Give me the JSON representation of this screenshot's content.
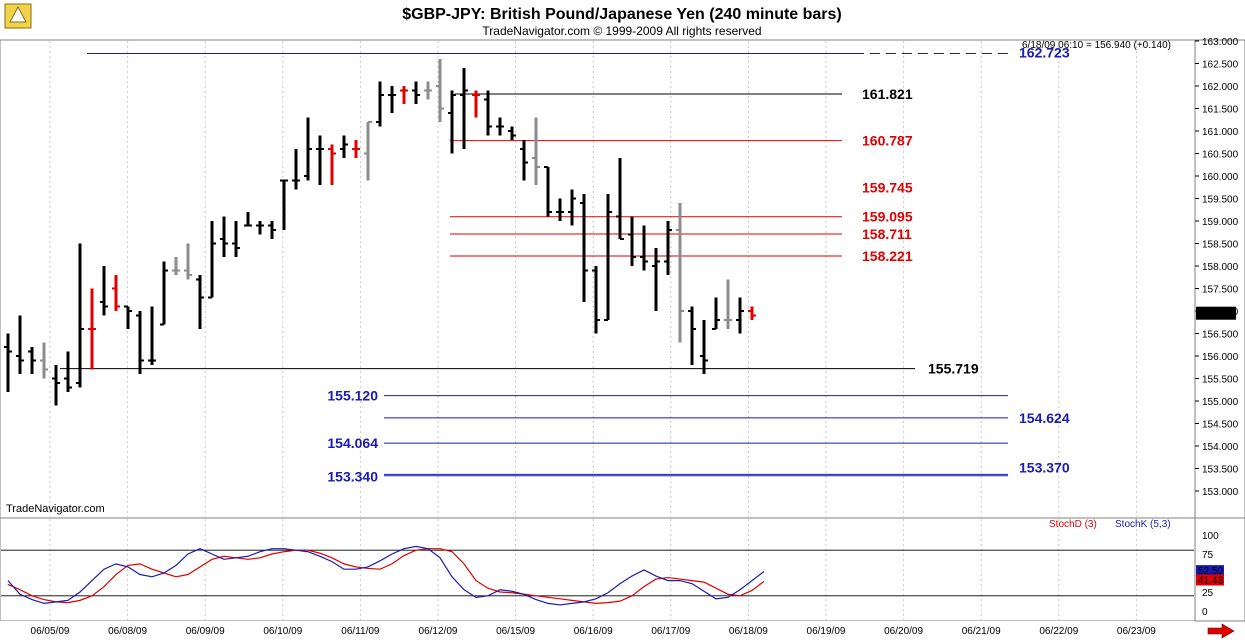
{
  "header": {
    "title": "$GBP-JPY:  British Pound/Japanese Yen  (240 minute bars)",
    "subtitle": "TradeNavigator.com © 1999-2009 All rights reserved",
    "info_line": "6/18/09 06:10 = 156.940 (+0.140)",
    "watermark": "TradeNavigator.com"
  },
  "colors": {
    "up_bar": "#000000",
    "gray_bar": "#8c8c8c",
    "red_bar": "#e00000",
    "blue_level": "#1a1ab4",
    "red_level": "#e00000",
    "black_level": "#000000",
    "stoch_d": "#e00000",
    "stoch_k": "#1a1ab4"
  },
  "chart_data": [
    {
      "type": "ohlc",
      "ylim": [
        152.9,
        163.1
      ],
      "y_ticks": [
        "163.000",
        "162.500",
        "162.000",
        "161.500",
        "161.000",
        "160.500",
        "160.000",
        "159.500",
        "159.000",
        "158.500",
        "158.000",
        "157.500",
        "157.000",
        "156.500",
        "156.000",
        "155.500",
        "155.000",
        "154.500",
        "154.000",
        "153.500",
        "153.000"
      ],
      "x_labels": [
        "06/05/09",
        "06/08/09",
        "06/09/09",
        "06/10/09",
        "06/11/09",
        "06/12/09",
        "06/15/09",
        "06/16/09",
        "06/17/09",
        "06/18/09",
        "06/19/09",
        "06/20/09",
        "06/21/09",
        "06/22/09",
        "06/23/09"
      ],
      "last_price_label": "156.940",
      "levels": [
        {
          "value": 162.723,
          "label": "162.723",
          "color": "blue"
        },
        {
          "value": 161.821,
          "label": "161.821",
          "color": "black"
        },
        {
          "value": 160.787,
          "label": "160.787",
          "color": "red"
        },
        {
          "value": 159.745,
          "label": "159.745",
          "color": "red"
        },
        {
          "value": 159.095,
          "label": "159.095",
          "color": "red"
        },
        {
          "value": 158.711,
          "label": "158.711",
          "color": "red"
        },
        {
          "value": 158.221,
          "label": "158.221",
          "color": "red"
        },
        {
          "value": 155.719,
          "label": "155.719",
          "color": "black"
        },
        {
          "value": 155.12,
          "label": "155.120",
          "color": "blue"
        },
        {
          "value": 154.624,
          "label": "154.624",
          "color": "blue"
        },
        {
          "value": 154.064,
          "label": "154.064",
          "color": "blue"
        },
        {
          "value": 153.37,
          "label": "153.370",
          "color": "blue"
        },
        {
          "value": 153.34,
          "label": "153.340",
          "color": "blue"
        }
      ],
      "bars": [
        {
          "o": 156.2,
          "h": 156.5,
          "l": 155.2,
          "c": 156.1,
          "k": "b"
        },
        {
          "o": 156.0,
          "h": 156.9,
          "l": 155.6,
          "c": 155.9,
          "k": "b"
        },
        {
          "o": 156.1,
          "h": 156.2,
          "l": 155.6,
          "c": 155.9,
          "k": "b"
        },
        {
          "o": 155.9,
          "h": 156.3,
          "l": 155.5,
          "c": 155.7,
          "k": "g"
        },
        {
          "o": 155.5,
          "h": 155.8,
          "l": 154.9,
          "c": 155.4,
          "k": "b"
        },
        {
          "o": 155.5,
          "h": 156.1,
          "l": 155.2,
          "c": 155.3,
          "k": "b"
        },
        {
          "o": 155.4,
          "h": 158.5,
          "l": 155.3,
          "c": 156.6,
          "k": "b"
        },
        {
          "o": 156.6,
          "h": 157.5,
          "l": 155.7,
          "c": 156.6,
          "k": "r"
        },
        {
          "o": 157.2,
          "h": 158.0,
          "l": 156.9,
          "c": 157.1,
          "k": "b"
        },
        {
          "o": 157.5,
          "h": 157.8,
          "l": 157.0,
          "c": 157.1,
          "k": "r"
        },
        {
          "o": 157.1,
          "h": 157.1,
          "l": 156.6,
          "c": 157.0,
          "k": "b"
        },
        {
          "o": 156.9,
          "h": 157.0,
          "l": 155.6,
          "c": 155.9,
          "k": "b"
        },
        {
          "o": 155.9,
          "h": 157.1,
          "l": 155.8,
          "c": 155.9,
          "k": "b"
        },
        {
          "o": 156.7,
          "h": 158.1,
          "l": 156.7,
          "c": 157.9,
          "k": "b"
        },
        {
          "o": 157.9,
          "h": 158.2,
          "l": 157.8,
          "c": 157.9,
          "k": "g"
        },
        {
          "o": 157.9,
          "h": 158.5,
          "l": 157.7,
          "c": 157.8,
          "k": "g"
        },
        {
          "o": 157.7,
          "h": 157.8,
          "l": 156.6,
          "c": 157.3,
          "k": "b"
        },
        {
          "o": 157.3,
          "h": 159.0,
          "l": 157.3,
          "c": 158.5,
          "k": "b"
        },
        {
          "o": 158.6,
          "h": 159.1,
          "l": 158.2,
          "c": 158.5,
          "k": "b"
        },
        {
          "o": 158.5,
          "h": 159.0,
          "l": 158.2,
          "c": 158.4,
          "k": "b"
        },
        {
          "o": 158.9,
          "h": 159.2,
          "l": 158.9,
          "c": 158.9,
          "k": "b"
        },
        {
          "o": 158.9,
          "h": 159.0,
          "l": 158.7,
          "c": 158.9,
          "k": "b"
        },
        {
          "o": 158.9,
          "h": 159.0,
          "l": 158.6,
          "c": 158.8,
          "k": "b"
        },
        {
          "o": 159.9,
          "h": 159.9,
          "l": 158.8,
          "c": 159.9,
          "k": "b"
        },
        {
          "o": 159.9,
          "h": 160.6,
          "l": 159.7,
          "c": 159.9,
          "k": "b"
        },
        {
          "o": 160.0,
          "h": 161.3,
          "l": 159.9,
          "c": 160.6,
          "k": "b"
        },
        {
          "o": 160.6,
          "h": 160.9,
          "l": 159.8,
          "c": 160.6,
          "k": "b"
        },
        {
          "o": 160.6,
          "h": 160.7,
          "l": 159.8,
          "c": 160.5,
          "k": "r"
        },
        {
          "o": 160.6,
          "h": 160.9,
          "l": 160.4,
          "c": 160.7,
          "k": "b"
        },
        {
          "o": 160.6,
          "h": 160.8,
          "l": 160.4,
          "c": 160.6,
          "k": "r"
        },
        {
          "o": 160.5,
          "h": 161.2,
          "l": 159.9,
          "c": 161.2,
          "k": "g"
        },
        {
          "o": 161.2,
          "h": 162.1,
          "l": 161.1,
          "c": 161.8,
          "k": "b"
        },
        {
          "o": 161.8,
          "h": 162.0,
          "l": 161.4,
          "c": 161.8,
          "k": "b"
        },
        {
          "o": 161.9,
          "h": 162.0,
          "l": 161.6,
          "c": 161.9,
          "k": "r"
        },
        {
          "o": 161.9,
          "h": 162.1,
          "l": 161.6,
          "c": 161.8,
          "k": "b"
        },
        {
          "o": 161.9,
          "h": 162.1,
          "l": 161.7,
          "c": 161.9,
          "k": "g"
        },
        {
          "o": 162.0,
          "h": 162.6,
          "l": 161.2,
          "c": 161.5,
          "k": "g"
        },
        {
          "o": 161.4,
          "h": 161.9,
          "l": 160.5,
          "c": 161.8,
          "k": "b"
        },
        {
          "o": 161.8,
          "h": 162.4,
          "l": 160.6,
          "c": 161.9,
          "k": "b"
        },
        {
          "o": 161.8,
          "h": 161.9,
          "l": 161.3,
          "c": 161.8,
          "k": "r"
        },
        {
          "o": 161.7,
          "h": 161.9,
          "l": 160.9,
          "c": 161.1,
          "k": "b"
        },
        {
          "o": 161.1,
          "h": 161.3,
          "l": 160.9,
          "c": 161.1,
          "k": "b"
        },
        {
          "o": 161.0,
          "h": 161.1,
          "l": 160.8,
          "c": 160.9,
          "k": "b"
        },
        {
          "o": 160.6,
          "h": 160.8,
          "l": 159.9,
          "c": 160.3,
          "k": "b"
        },
        {
          "o": 160.4,
          "h": 161.3,
          "l": 159.8,
          "c": 160.2,
          "k": "g"
        },
        {
          "o": 160.2,
          "h": 160.2,
          "l": 159.1,
          "c": 159.2,
          "k": "b"
        },
        {
          "o": 159.2,
          "h": 159.5,
          "l": 159.0,
          "c": 159.2,
          "k": "b"
        },
        {
          "o": 159.2,
          "h": 159.7,
          "l": 158.9,
          "c": 159.5,
          "k": "b"
        },
        {
          "o": 159.4,
          "h": 159.6,
          "l": 157.2,
          "c": 157.9,
          "k": "b"
        },
        {
          "o": 157.9,
          "h": 158.0,
          "l": 156.5,
          "c": 156.8,
          "k": "b"
        },
        {
          "o": 156.8,
          "h": 159.6,
          "l": 156.8,
          "c": 159.2,
          "k": "b"
        },
        {
          "o": 159.1,
          "h": 160.4,
          "l": 158.6,
          "c": 158.6,
          "k": "b"
        },
        {
          "o": 158.7,
          "h": 159.1,
          "l": 158.0,
          "c": 158.2,
          "k": "b"
        },
        {
          "o": 158.2,
          "h": 158.9,
          "l": 157.9,
          "c": 158.1,
          "k": "b"
        },
        {
          "o": 158.0,
          "h": 158.4,
          "l": 157.0,
          "c": 158.1,
          "k": "b"
        },
        {
          "o": 158.1,
          "h": 159.0,
          "l": 157.8,
          "c": 158.8,
          "k": "b"
        },
        {
          "o": 158.8,
          "h": 159.4,
          "l": 156.3,
          "c": 157.0,
          "k": "g"
        },
        {
          "o": 157.0,
          "h": 157.1,
          "l": 155.8,
          "c": 156.6,
          "k": "b"
        },
        {
          "o": 156.0,
          "h": 156.8,
          "l": 155.6,
          "c": 155.9,
          "k": "b"
        },
        {
          "o": 156.6,
          "h": 157.3,
          "l": 156.6,
          "c": 156.8,
          "k": "b"
        },
        {
          "o": 156.8,
          "h": 157.7,
          "l": 156.6,
          "c": 156.8,
          "k": "g"
        },
        {
          "o": 156.8,
          "h": 157.3,
          "l": 156.5,
          "c": 157.0,
          "k": "b"
        },
        {
          "o": 157.0,
          "h": 157.1,
          "l": 156.8,
          "c": 156.9,
          "k": "r"
        }
      ]
    },
    {
      "type": "line",
      "title": "",
      "ylim": [
        0,
        100
      ],
      "y_ticks": [
        "100",
        "75",
        "50",
        "25",
        "0"
      ],
      "reference_lines": [
        80,
        20
      ],
      "last_values": {
        "stoch_k": "52.50",
        "stoch_d": "41.43"
      },
      "series": [
        {
          "name": "StochD (3)",
          "values": [
            35,
            28,
            20,
            15,
            12,
            11,
            14,
            20,
            32,
            48,
            60,
            62,
            55,
            50,
            45,
            48,
            58,
            68,
            72,
            70,
            68,
            70,
            75,
            78,
            80,
            80,
            76,
            70,
            62,
            58,
            56,
            55,
            62,
            73,
            80,
            82,
            82,
            78,
            62,
            40,
            30,
            25,
            24,
            22,
            20,
            18,
            16,
            14,
            12,
            10,
            11,
            13,
            20,
            32,
            42,
            44,
            42,
            40,
            38,
            30,
            22,
            20,
            27,
            39
          ]
        },
        {
          "name": "StochK (5,3)",
          "values": [
            40,
            22,
            15,
            10,
            12,
            14,
            25,
            40,
            55,
            62,
            58,
            48,
            45,
            50,
            60,
            75,
            82,
            75,
            68,
            70,
            72,
            78,
            82,
            82,
            80,
            78,
            72,
            65,
            55,
            55,
            58,
            66,
            75,
            82,
            85,
            82,
            70,
            45,
            28,
            18,
            20,
            28,
            26,
            22,
            15,
            10,
            8,
            10,
            12,
            16,
            24,
            36,
            46,
            54,
            46,
            40,
            40,
            36,
            26,
            16,
            18,
            28,
            40,
            52
          ]
        }
      ],
      "legend": [
        "StochD (3)",
        "StochK (5,3)"
      ]
    }
  ]
}
